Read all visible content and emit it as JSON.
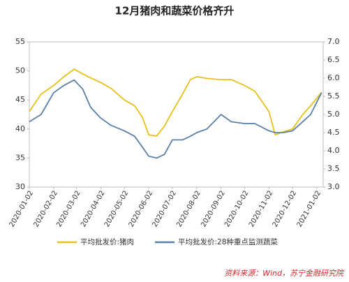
{
  "chart_data": {
    "type": "line",
    "title": "12月猪肉和蔬菜价格齐升",
    "x": [
      "2020-01-02",
      "2020-01-17",
      "2020-02-02",
      "2020-02-15",
      "2020-02-28",
      "2020-03-10",
      "2020-03-20",
      "2020-04-02",
      "2020-04-15",
      "2020-05-02",
      "2020-05-15",
      "2020-05-25",
      "2020-06-02",
      "2020-06-12",
      "2020-06-22",
      "2020-07-02",
      "2020-07-15",
      "2020-07-25",
      "2020-08-02",
      "2020-08-15",
      "2020-09-02",
      "2020-09-15",
      "2020-10-02",
      "2020-10-15",
      "2020-11-02",
      "2020-11-10",
      "2020-11-20",
      "2020-12-02",
      "2020-12-15",
      "2020-12-25",
      "2021-01-08"
    ],
    "series": [
      {
        "name": "平均批发价:猪肉",
        "color": "#e6c01c",
        "values": [
          43,
          46,
          47.5,
          49,
          50.3,
          49.5,
          48.8,
          48,
          47,
          45,
          44,
          42,
          39,
          38.8,
          40.5,
          43,
          46,
          48.5,
          49,
          48.7,
          48.5,
          48.5,
          47.5,
          46.5,
          43,
          39,
          39.5,
          40,
          42.5,
          44,
          46.3
        ]
      },
      {
        "name": "平均批发价:28种重点监测蔬菜",
        "color": "#5b80a8",
        "axis": "y2",
        "values": [
          4.8,
          5.0,
          5.6,
          5.8,
          5.95,
          5.7,
          5.2,
          4.9,
          4.7,
          4.55,
          4.4,
          4.1,
          3.85,
          3.8,
          3.9,
          4.3,
          4.3,
          4.4,
          4.5,
          4.6,
          5.0,
          4.8,
          4.75,
          4.75,
          4.55,
          4.5,
          4.5,
          4.55,
          4.8,
          5.0,
          5.6
        ]
      }
    ],
    "xlim": [
      "2020-01-02",
      "2021-01-10"
    ],
    "xticks": [
      "2020-01-02",
      "2020-02-02",
      "2020-03-02",
      "2020-04-02",
      "2020-05-02",
      "2020-06-02",
      "2020-07-02",
      "2020-08-02",
      "2020-09-02",
      "2020-10-02",
      "2020-11-02",
      "2020-12-02",
      "2021-01-02"
    ],
    "ylim": [
      30,
      55
    ],
    "yticks": [
      30,
      35,
      40,
      45,
      50,
      55
    ],
    "y2lim": [
      3,
      7
    ],
    "y2ticks": [
      {
        "value": 3,
        "label": "3.0"
      },
      {
        "value": 3.5,
        "label": "3.5"
      },
      {
        "value": 4,
        "label": "4.0"
      },
      {
        "value": 4.5,
        "label": "4.5"
      },
      {
        "value": 5,
        "label": "5.0"
      },
      {
        "value": 5.5,
        "label": "5.5"
      },
      {
        "value": 6,
        "label": "6.0"
      },
      {
        "value": 6.5,
        "label": "6.5"
      },
      {
        "value": 7,
        "label": "7.0"
      }
    ],
    "source": "资料来源：Wind，苏宁金融研究院"
  }
}
